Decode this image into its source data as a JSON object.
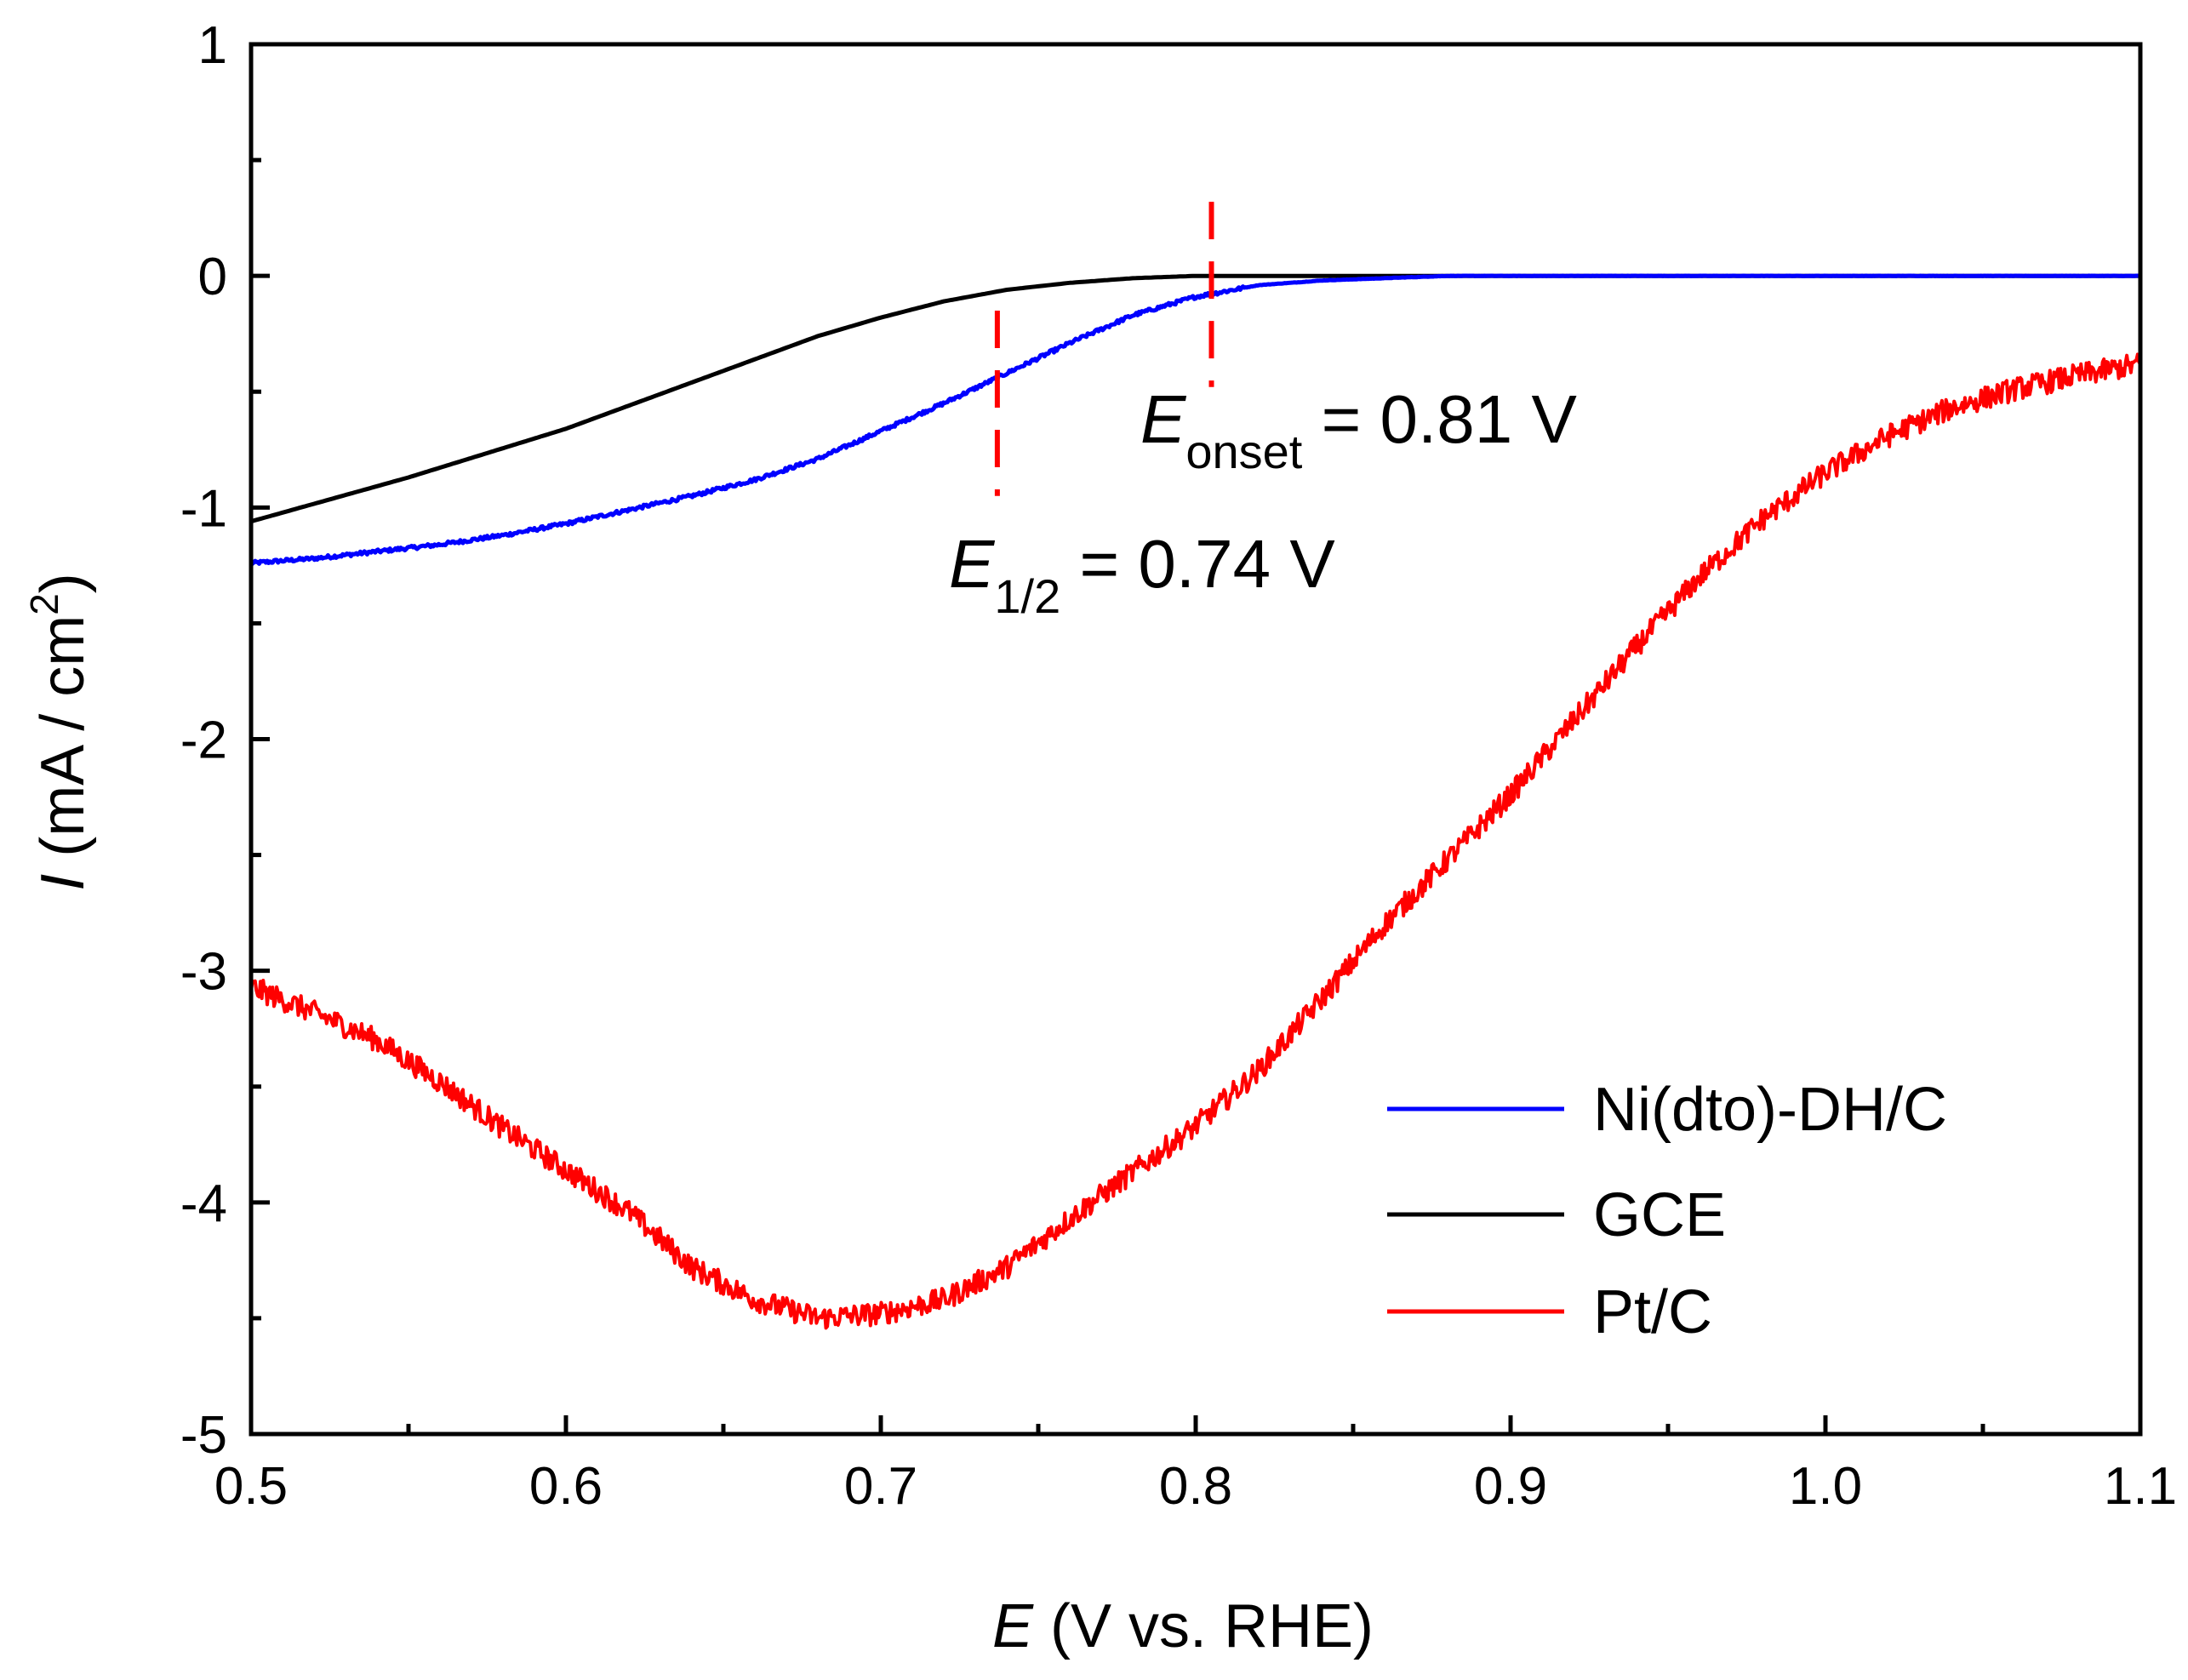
{
  "chart_data": {
    "type": "line",
    "title": "",
    "xlabel": {
      "italic": "E",
      "rest": " (V vs. RHE)"
    },
    "ylabel": {
      "italic": "I",
      "rest": " (mA / cm",
      "sup": "2",
      "close": ")"
    },
    "xlim": [
      0.5,
      1.1
    ],
    "ylim": [
      -5,
      1
    ],
    "grid": false,
    "x_ticks": [
      0.5,
      0.6,
      0.7,
      0.8,
      0.9,
      1.0,
      1.1
    ],
    "x_tick_labels": [
      "0.5",
      "0.6",
      "0.7",
      "0.8",
      "0.9",
      "1.0",
      "1.1"
    ],
    "y_ticks": [
      1,
      0,
      -1,
      -2,
      -3,
      -4,
      -5
    ],
    "y_tick_labels": [
      "1",
      "0",
      "-1",
      "-2",
      "-3",
      "-4",
      "-5"
    ],
    "legend_position": "bottom-right",
    "series": [
      {
        "name": "Ni(dto)-DH/C",
        "color": "#0000ff",
        "noise": 0.008,
        "x": [
          0.5,
          0.52,
          0.54,
          0.56,
          0.58,
          0.6,
          0.62,
          0.64,
          0.66,
          0.68,
          0.7,
          0.72,
          0.74,
          0.76,
          0.78,
          0.8,
          0.82,
          0.84,
          0.86,
          0.88,
          0.9,
          0.95,
          1.0,
          1.05,
          1.1
        ],
        "y": [
          -1.24,
          -1.22,
          -1.19,
          -1.16,
          -1.12,
          -1.07,
          -1.01,
          -0.95,
          -0.88,
          -0.79,
          -0.67,
          -0.55,
          -0.42,
          -0.29,
          -0.17,
          -0.09,
          -0.04,
          -0.02,
          -0.01,
          0.0,
          0.0,
          0.0,
          0.0,
          0.0,
          0.0
        ]
      },
      {
        "name": "GCE",
        "color": "#000000",
        "noise": 0,
        "x": [
          0.5,
          0.55,
          0.6,
          0.62,
          0.64,
          0.66,
          0.68,
          0.7,
          0.72,
          0.74,
          0.76,
          0.78,
          0.8,
          0.85,
          0.9,
          1.0,
          1.1
        ],
        "y": [
          -1.06,
          -0.87,
          -0.66,
          -0.56,
          -0.46,
          -0.36,
          -0.26,
          -0.18,
          -0.11,
          -0.06,
          -0.03,
          -0.01,
          0.0,
          0.0,
          0.0,
          0.0,
          0.0
        ]
      },
      {
        "name": "Pt/C",
        "color": "#ff0000",
        "noise": 0.05,
        "x": [
          0.5,
          0.52,
          0.54,
          0.56,
          0.58,
          0.6,
          0.62,
          0.64,
          0.66,
          0.68,
          0.7,
          0.72,
          0.74,
          0.76,
          0.78,
          0.8,
          0.82,
          0.84,
          0.86,
          0.88,
          0.9,
          0.92,
          0.94,
          0.96,
          0.98,
          1.0,
          1.02,
          1.04,
          1.06,
          1.08,
          1.1
        ],
        "y": [
          -3.07,
          -3.18,
          -3.3,
          -3.48,
          -3.68,
          -3.86,
          -4.04,
          -4.28,
          -4.42,
          -4.5,
          -4.48,
          -4.42,
          -4.28,
          -4.07,
          -3.87,
          -3.67,
          -3.43,
          -3.12,
          -2.8,
          -2.52,
          -2.24,
          -1.92,
          -1.6,
          -1.3,
          -1.05,
          -0.85,
          -0.69,
          -0.57,
          -0.49,
          -0.43,
          -0.38
        ]
      }
    ],
    "annotations": [
      {
        "id": "onset",
        "italic": "E",
        "sub": "onset",
        "rest": " = 0.81 V",
        "x_line": 0.805,
        "y_range": [
          -0.48,
          0.32
        ]
      },
      {
        "id": "half",
        "italic": "E",
        "sub": "1/2",
        "rest": " = 0.74 V",
        "x_line": 0.737,
        "y_range": [
          -0.95,
          -0.15
        ]
      }
    ]
  }
}
